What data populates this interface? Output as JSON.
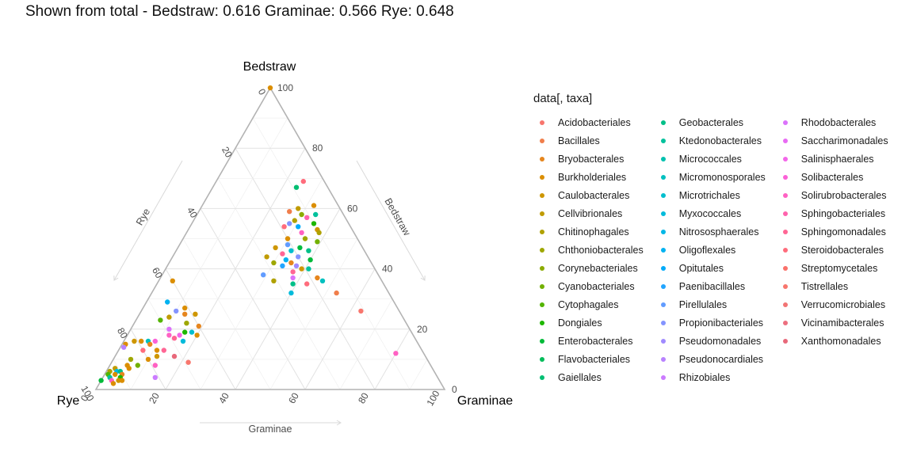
{
  "title": "Shown from total - Bedstraw: 0.616  Graminae: 0.566  Rye: 0.648",
  "chart_data": {
    "type": "scatter",
    "subtype": "ternary",
    "title": "Shown from total - Bedstraw: 0.616  Graminae: 0.566  Rye: 0.648",
    "corner_labels": {
      "top": "Bedstraw",
      "left": "Rye",
      "right": "Graminae"
    },
    "axis_labels": {
      "left": "Rye",
      "right": "Bedstraw",
      "bottom": "Graminae"
    },
    "ticks": [
      0,
      20,
      40,
      60,
      80,
      100
    ],
    "tick_labels": [
      "0",
      "20",
      "40",
      "60",
      "80",
      "100"
    ],
    "grid": true,
    "legend_title": "data[, taxa]",
    "legend_position": "right",
    "legend": [
      {
        "name": "Acidobacteriales",
        "color": "#F8766D"
      },
      {
        "name": "Bacillales",
        "color": "#F07E4B"
      },
      {
        "name": "Bryobacterales",
        "color": "#E6861E"
      },
      {
        "name": "Burkholderiales",
        "color": "#DB8E00"
      },
      {
        "name": "Caulobacterales",
        "color": "#CE9600"
      },
      {
        "name": "Cellvibrionales",
        "color": "#C09B00"
      },
      {
        "name": "Chitinophagales",
        "color": "#B0A100"
      },
      {
        "name": "Chthoniobacterales",
        "color": "#9EA700"
      },
      {
        "name": "Corynebacteriales",
        "color": "#8BAB00"
      },
      {
        "name": "Cyanobacteriales",
        "color": "#72B000"
      },
      {
        "name": "Cytophagales",
        "color": "#53B400"
      },
      {
        "name": "Dongiales",
        "color": "#1DB700"
      },
      {
        "name": "Enterobacterales",
        "color": "#00BA38"
      },
      {
        "name": "Flavobacteriales",
        "color": "#00BC59"
      },
      {
        "name": "Gaiellales",
        "color": "#00BE72"
      },
      {
        "name": "Geobacterales",
        "color": "#00BF88"
      },
      {
        "name": "Ktedonobacterales",
        "color": "#00C19C"
      },
      {
        "name": "Micrococcales",
        "color": "#00C1AF"
      },
      {
        "name": "Micromonosporales",
        "color": "#00C0BF"
      },
      {
        "name": "Microtrichales",
        "color": "#00BECE"
      },
      {
        "name": "Myxococcales",
        "color": "#00BBDB"
      },
      {
        "name": "Nitrososphaerales",
        "color": "#00B7E7"
      },
      {
        "name": "Oligoflexales",
        "color": "#00B2F1"
      },
      {
        "name": "Opitutales",
        "color": "#00ABFA"
      },
      {
        "name": "Paenibacillales",
        "color": "#21A5FF"
      },
      {
        "name": "Pirellulales",
        "color": "#619CFF"
      },
      {
        "name": "Propionibacteriales",
        "color": "#8494FF"
      },
      {
        "name": "Pseudomonadales",
        "color": "#A08AFF"
      },
      {
        "name": "Pseudonocardiales",
        "color": "#B882FF"
      },
      {
        "name": "Rhizobiales",
        "color": "#CB7BFF"
      },
      {
        "name": "Rhodobacterales",
        "color": "#DB72FB"
      },
      {
        "name": "Saccharimonadales",
        "color": "#E86BF3"
      },
      {
        "name": "Salinisphaerales",
        "color": "#F366E9"
      },
      {
        "name": "Solibacterales",
        "color": "#FB61D7"
      },
      {
        "name": "Solirubrobacterales",
        "color": "#FF61C3"
      },
      {
        "name": "Sphingobacteriales",
        "color": "#FF62AD"
      },
      {
        "name": "Sphingomonadales",
        "color": "#FF6695"
      },
      {
        "name": "Steroidobacterales",
        "color": "#FF6C7C"
      },
      {
        "name": "Streptomycetales",
        "color": "#FA716A"
      },
      {
        "name": "Tistrellales",
        "color": "#F8766D"
      },
      {
        "name": "Verrucomicrobiales",
        "color": "#F27474"
      },
      {
        "name": "Vicinamibacterales",
        "color": "#EC6F7F"
      },
      {
        "name": "Xanthomonadales",
        "color": "#E8687A"
      }
    ],
    "points": [
      {
        "bedstraw": 100,
        "graminae": 0,
        "rye": 0,
        "color": "#DB8E00"
      },
      {
        "bedstraw": 69,
        "graminae": 25,
        "rye": 6,
        "color": "#FF6C7C"
      },
      {
        "bedstraw": 67,
        "graminae": 24,
        "rye": 9,
        "color": "#00BE72"
      },
      {
        "bedstraw": 61,
        "graminae": 32,
        "rye": 7,
        "color": "#DB8E00"
      },
      {
        "bedstraw": 60,
        "graminae": 28,
        "rye": 12,
        "color": "#C09B00"
      },
      {
        "bedstraw": 59,
        "graminae": 26,
        "rye": 15,
        "color": "#F07E4B"
      },
      {
        "bedstraw": 58,
        "graminae": 30,
        "rye": 12,
        "color": "#8BAB00"
      },
      {
        "bedstraw": 58,
        "graminae": 34,
        "rye": 8,
        "color": "#00C19C"
      },
      {
        "bedstraw": 57,
        "graminae": 32,
        "rye": 11,
        "color": "#FF62AD"
      },
      {
        "bedstraw": 56,
        "graminae": 29,
        "rye": 15,
        "color": "#B0A100"
      },
      {
        "bedstraw": 55,
        "graminae": 35,
        "rye": 10,
        "color": "#1DB700"
      },
      {
        "bedstraw": 55,
        "graminae": 28,
        "rye": 17,
        "color": "#8494FF"
      },
      {
        "bedstraw": 54,
        "graminae": 31,
        "rye": 15,
        "color": "#00ABFA"
      },
      {
        "bedstraw": 54,
        "graminae": 27,
        "rye": 19,
        "color": "#FF6C7C"
      },
      {
        "bedstraw": 53,
        "graminae": 37,
        "rye": 10,
        "color": "#CE9600"
      },
      {
        "bedstraw": 52,
        "graminae": 33,
        "rye": 15,
        "color": "#FF61C3"
      },
      {
        "bedstraw": 52,
        "graminae": 38,
        "rye": 10,
        "color": "#B0A100"
      },
      {
        "bedstraw": 50,
        "graminae": 30,
        "rye": 20,
        "color": "#DB8E00"
      },
      {
        "bedstraw": 50,
        "graminae": 35,
        "rye": 15,
        "color": "#9EA700"
      },
      {
        "bedstraw": 49,
        "graminae": 39,
        "rye": 12,
        "color": "#72B000"
      },
      {
        "bedstraw": 48,
        "graminae": 31,
        "rye": 21,
        "color": "#619CFF"
      },
      {
        "bedstraw": 47,
        "graminae": 35,
        "rye": 18,
        "color": "#00BB40"
      },
      {
        "bedstraw": 47,
        "graminae": 28,
        "rye": 25,
        "color": "#CE9600"
      },
      {
        "bedstraw": 46,
        "graminae": 33,
        "rye": 21,
        "color": "#00BECE"
      },
      {
        "bedstraw": 46,
        "graminae": 38,
        "rye": 16,
        "color": "#00BF88"
      },
      {
        "bedstraw": 45,
        "graminae": 31,
        "rye": 24,
        "color": "#FF6695"
      },
      {
        "bedstraw": 44,
        "graminae": 27,
        "rye": 29,
        "color": "#C09B00"
      },
      {
        "bedstraw": 44,
        "graminae": 36,
        "rye": 20,
        "color": "#8494FF"
      },
      {
        "bedstraw": 43,
        "graminae": 40,
        "rye": 17,
        "color": "#00BA38"
      },
      {
        "bedstraw": 43,
        "graminae": 33,
        "rye": 24,
        "color": "#00B2F1"
      },
      {
        "bedstraw": 42,
        "graminae": 35,
        "rye": 23,
        "color": "#E6861E"
      },
      {
        "bedstraw": 42,
        "graminae": 30,
        "rye": 28,
        "color": "#9EA700"
      },
      {
        "bedstraw": 41,
        "graminae": 37,
        "rye": 22,
        "color": "#A08AFF"
      },
      {
        "bedstraw": 41,
        "graminae": 33,
        "rye": 26,
        "color": "#21A5FF"
      },
      {
        "bedstraw": 40,
        "graminae": 39,
        "rye": 21,
        "color": "#CE9600"
      },
      {
        "bedstraw": 40,
        "graminae": 41,
        "rye": 19,
        "color": "#00C19C"
      },
      {
        "bedstraw": 39,
        "graminae": 37,
        "rye": 24,
        "color": "#FF6695"
      },
      {
        "bedstraw": 38,
        "graminae": 29,
        "rye": 33,
        "color": "#619CFF"
      },
      {
        "bedstraw": 37,
        "graminae": 45,
        "rye": 18,
        "color": "#E6861E"
      },
      {
        "bedstraw": 37,
        "graminae": 38,
        "rye": 25,
        "color": "#DB72FB"
      },
      {
        "bedstraw": 36,
        "graminae": 47,
        "rye": 17,
        "color": "#00C0BF"
      },
      {
        "bedstraw": 36,
        "graminae": 33,
        "rye": 31,
        "color": "#B0A100"
      },
      {
        "bedstraw": 35,
        "graminae": 43,
        "rye": 22,
        "color": "#FF6C7C"
      },
      {
        "bedstraw": 35,
        "graminae": 39,
        "rye": 26,
        "color": "#00BF88"
      },
      {
        "bedstraw": 32,
        "graminae": 40,
        "rye": 28,
        "color": "#00BBDB"
      },
      {
        "bedstraw": 32,
        "graminae": 53,
        "rye": 15,
        "color": "#F07E4B"
      },
      {
        "bedstraw": 26,
        "graminae": 63,
        "rye": 11,
        "color": "#F8766D"
      },
      {
        "bedstraw": 12,
        "graminae": 80,
        "rye": 8,
        "color": "#FF61C3"
      },
      {
        "bedstraw": 36,
        "graminae": 4,
        "rye": 60,
        "color": "#DB8E00"
      },
      {
        "bedstraw": 29,
        "graminae": 6,
        "rye": 65,
        "color": "#00B2F1"
      },
      {
        "bedstraw": 27,
        "graminae": 12,
        "rye": 61,
        "color": "#DB8E00"
      },
      {
        "bedstraw": 26,
        "graminae": 10,
        "rye": 64,
        "color": "#8494FF"
      },
      {
        "bedstraw": 25,
        "graminae": 16,
        "rye": 59,
        "color": "#CE9600"
      },
      {
        "bedstraw": 25,
        "graminae": 13,
        "rye": 62,
        "color": "#E6861E"
      },
      {
        "bedstraw": 24,
        "graminae": 9,
        "rye": 67,
        "color": "#C09B00"
      },
      {
        "bedstraw": 23,
        "graminae": 7,
        "rye": 70,
        "color": "#53B400"
      },
      {
        "bedstraw": 22,
        "graminae": 15,
        "rye": 63,
        "color": "#9EA700"
      },
      {
        "bedstraw": 21,
        "graminae": 19,
        "rye": 60,
        "color": "#E6861E"
      },
      {
        "bedstraw": 20,
        "graminae": 11,
        "rye": 69,
        "color": "#DB72FB"
      },
      {
        "bedstraw": 19,
        "graminae": 16,
        "rye": 65,
        "color": "#1DB700"
      },
      {
        "bedstraw": 19,
        "graminae": 18,
        "rye": 63,
        "color": "#00BECE"
      },
      {
        "bedstraw": 18,
        "graminae": 12,
        "rye": 70,
        "color": "#FF61C3"
      },
      {
        "bedstraw": 18,
        "graminae": 15,
        "rye": 67,
        "color": "#F366E9"
      },
      {
        "bedstraw": 18,
        "graminae": 20,
        "rye": 62,
        "color": "#DB8E00"
      },
      {
        "bedstraw": 17,
        "graminae": 14,
        "rye": 69,
        "color": "#FF6695"
      },
      {
        "bedstraw": 16,
        "graminae": 17,
        "rye": 67,
        "color": "#00BBDB"
      },
      {
        "bedstraw": 16,
        "graminae": 5,
        "rye": 79,
        "color": "#DB8E00"
      },
      {
        "bedstraw": 16,
        "graminae": 7,
        "rye": 77,
        "color": "#00C0BF"
      },
      {
        "bedstraw": 16,
        "graminae": 9,
        "rye": 75,
        "color": "#FB61D7"
      },
      {
        "bedstraw": 16,
        "graminae": 3,
        "rye": 81,
        "color": "#CE9600"
      },
      {
        "bedstraw": 15,
        "graminae": 8,
        "rye": 77,
        "color": "#E6861E"
      },
      {
        "bedstraw": 15,
        "graminae": 1,
        "rye": 84,
        "color": "#DB8E00"
      },
      {
        "bedstraw": 14,
        "graminae": 1,
        "rye": 85,
        "color": "#B882FF"
      },
      {
        "bedstraw": 13,
        "graminae": 7,
        "rye": 80,
        "color": "#FF6C7C"
      },
      {
        "bedstraw": 13,
        "graminae": 11,
        "rye": 76,
        "color": "#DB8E00"
      },
      {
        "bedstraw": 13,
        "graminae": 13,
        "rye": 74,
        "color": "#FF6695"
      },
      {
        "bedstraw": 11,
        "graminae": 17,
        "rye": 72,
        "color": "#E8687A"
      },
      {
        "bedstraw": 11,
        "graminae": 12,
        "rye": 77,
        "color": "#CE9600"
      },
      {
        "bedstraw": 10,
        "graminae": 5,
        "rye": 85,
        "color": "#9EA700"
      },
      {
        "bedstraw": 10,
        "graminae": 10,
        "rye": 80,
        "color": "#DB8E00"
      },
      {
        "bedstraw": 9,
        "graminae": 22,
        "rye": 69,
        "color": "#F8766D"
      },
      {
        "bedstraw": 8,
        "graminae": 13,
        "rye": 79,
        "color": "#FF61C3"
      },
      {
        "bedstraw": 8,
        "graminae": 5,
        "rye": 87,
        "color": "#DB8E00"
      },
      {
        "bedstraw": 8,
        "graminae": 8,
        "rye": 84,
        "color": "#72B000"
      },
      {
        "bedstraw": 7,
        "graminae": 2,
        "rye": 91,
        "color": "#C09B00"
      },
      {
        "bedstraw": 7,
        "graminae": 6,
        "rye": 87,
        "color": "#DB8E00"
      },
      {
        "bedstraw": 6,
        "graminae": 3,
        "rye": 91,
        "color": "#00B7E7"
      },
      {
        "bedstraw": 6,
        "graminae": 4,
        "rye": 90,
        "color": "#00BF88"
      },
      {
        "bedstraw": 6,
        "graminae": 1,
        "rye": 93,
        "color": "#B0A100"
      },
      {
        "bedstraw": 5,
        "graminae": 1,
        "rye": 94,
        "color": "#53B400"
      },
      {
        "bedstraw": 5,
        "graminae": 3,
        "rye": 92,
        "color": "#DB8E00"
      },
      {
        "bedstraw": 5,
        "graminae": 5,
        "rye": 90,
        "color": "#E6861E"
      },
      {
        "bedstraw": 4,
        "graminae": 2,
        "rye": 94,
        "color": "#00C19C"
      },
      {
        "bedstraw": 4,
        "graminae": 5,
        "rye": 91,
        "color": "#1DB700"
      },
      {
        "bedstraw": 4,
        "graminae": 15,
        "rye": 81,
        "color": "#CB7BFF"
      },
      {
        "bedstraw": 3,
        "graminae": 0,
        "rye": 97,
        "color": "#00BA38"
      },
      {
        "bedstraw": 3,
        "graminae": 3,
        "rye": 94,
        "color": "#FF61C3"
      },
      {
        "bedstraw": 3,
        "graminae": 5,
        "rye": 92,
        "color": "#CE9600"
      },
      {
        "bedstraw": 3,
        "graminae": 6,
        "rye": 91,
        "color": "#DB8E00"
      },
      {
        "bedstraw": 2,
        "graminae": 4,
        "rye": 94,
        "color": "#DB8E00"
      }
    ]
  }
}
